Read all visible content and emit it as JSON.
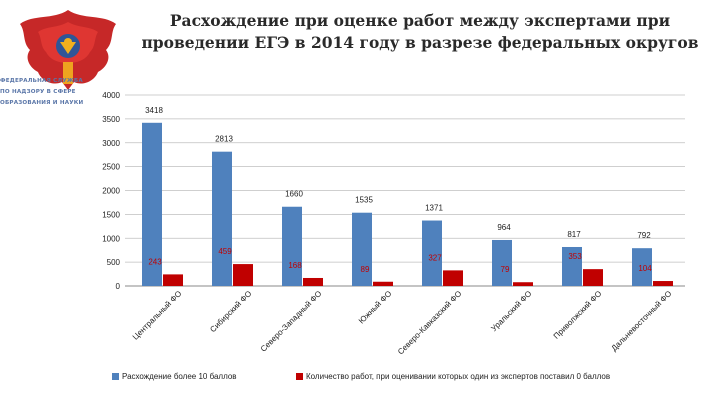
{
  "org_lines": [
    "ФЕДЕРАЛЬНАЯ СЛУЖБА",
    "ПО НАДЗОРУ В СФЕРЕ",
    "ОБРАЗОВАНИЯ И НАУКИ"
  ],
  "colors": {
    "series1": "#4f81bd",
    "series2": "#c00000",
    "logo_red": "#c62828",
    "logo_blue": "#2f5597",
    "logo_gold": "#f2b01e"
  },
  "chart_data": {
    "type": "bar",
    "title": "Расхождение при оценке работ между экспертами при проведении ЕГЭ в 2014 году в разрезе федеральных округов",
    "categories": [
      "Центральный ФО",
      "Сибирский ФО",
      "Северо-Западный ФО",
      "Южный ФО",
      "Северо-Кавказский ФО",
      "Уральский ФО",
      "Приволжский ФО",
      "Дальневосточный ФО"
    ],
    "series": [
      {
        "name": "Расхождение более 10 баллов",
        "values": [
          3418,
          2813,
          1660,
          1535,
          1371,
          964,
          817,
          792
        ]
      },
      {
        "name": "Количество работ, при оценивании которых один из экспертов поставил 0 баллов",
        "values": [
          243,
          459,
          168,
          89,
          327,
          79,
          353,
          104
        ]
      }
    ],
    "ylim": [
      0,
      4000
    ],
    "yticks": [
      0,
      500,
      1000,
      1500,
      2000,
      2500,
      3000,
      3500,
      4000
    ],
    "grid": true,
    "legend_position": "bottom"
  }
}
